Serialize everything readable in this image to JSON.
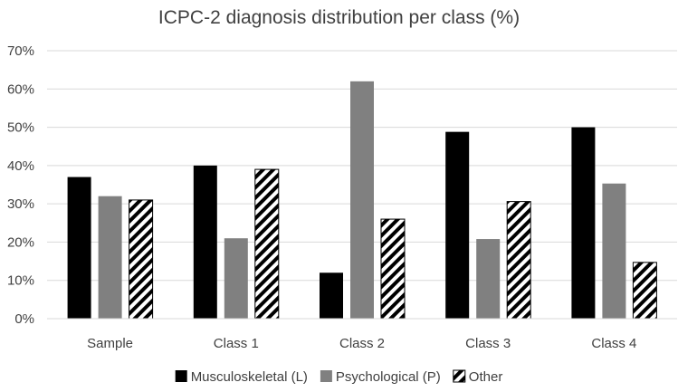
{
  "chart_data": {
    "type": "bar",
    "title": "ICPC-2 diagnosis distribution per class (%)",
    "xlabel": "",
    "ylabel": "",
    "categories": [
      "Sample",
      "Class 1",
      "Class 2",
      "Class 3",
      "Class 4"
    ],
    "series": [
      {
        "name": "Musculoskeletal (L)",
        "values": [
          37,
          40,
          12,
          48.8,
          50
        ],
        "color": "#000000",
        "pattern": "solid"
      },
      {
        "name": "Psychological (P)",
        "values": [
          32,
          21,
          62,
          20.8,
          35.3
        ],
        "color": "#808080",
        "pattern": "solid"
      },
      {
        "name": "Other",
        "values": [
          31,
          39,
          26,
          30.6,
          14.7
        ],
        "color": "#000000",
        "pattern": "diagonal-stripes"
      }
    ],
    "ylim": [
      0,
      70
    ],
    "yticks": [
      0,
      10,
      20,
      30,
      40,
      50,
      60,
      70
    ],
    "ytick_labels": [
      "0%",
      "10%",
      "20%",
      "30%",
      "40%",
      "50%",
      "60%",
      "70%"
    ],
    "grid": true,
    "legend_position": "bottom"
  }
}
